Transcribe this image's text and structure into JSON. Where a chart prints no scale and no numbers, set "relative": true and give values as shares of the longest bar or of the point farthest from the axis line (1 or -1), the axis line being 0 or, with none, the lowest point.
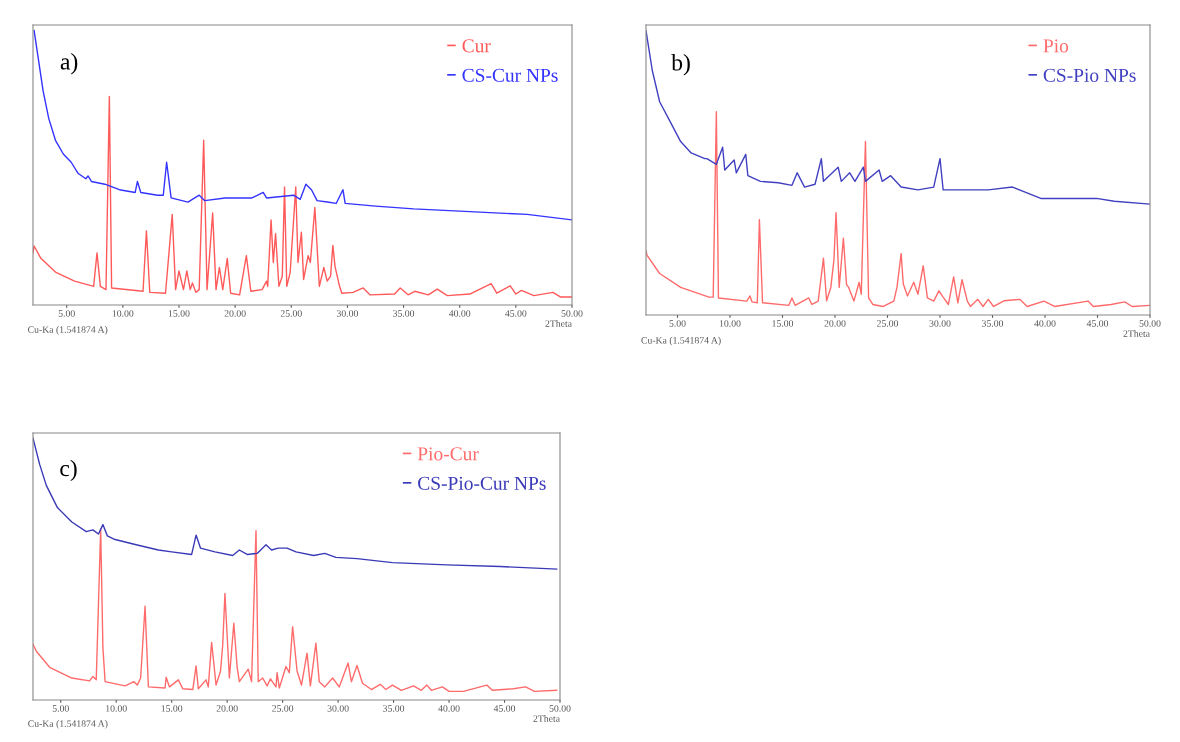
{
  "chart_data": [
    {
      "type": "line",
      "relative": true,
      "xlabel": "2Theta",
      "annotations": [
        "a)",
        "Cu-Ka (1.541874 A)"
      ],
      "legend": "top right",
      "grid": false,
      "xlim": [
        2,
        50
      ],
      "xticks": [
        {
          "value": 5,
          "label": "5.00"
        },
        {
          "value": 10,
          "label": "10.00"
        },
        {
          "value": 15,
          "label": "15.00"
        },
        {
          "value": 20,
          "label": "20.00"
        },
        {
          "value": 25,
          "label": "25.00"
        },
        {
          "value": 30,
          "label": "30.00"
        },
        {
          "value": 35,
          "label": "35.00"
        },
        {
          "value": 40,
          "label": "40.00"
        },
        {
          "value": 45,
          "label": "45.00"
        },
        {
          "value": 50,
          "label": "50.00"
        }
      ],
      "series": [
        {
          "name": "Cur",
          "color": "#ff5a5a",
          "x": [
            2.0,
            2.1,
            2.7,
            4.0,
            5.7,
            7.4,
            7.7,
            8.0,
            8.5,
            8.8,
            9.0,
            11.8,
            12.1,
            12.4,
            13.8,
            14.4,
            14.7,
            15.0,
            15.4,
            15.7,
            16.0,
            16.2,
            16.5,
            16.8,
            17.2,
            17.5,
            18.0,
            18.3,
            18.6,
            18.9,
            19.3,
            19.6,
            20.4,
            21.0,
            21.4,
            22.4,
            22.8,
            22.9,
            23.2,
            23.4,
            23.6,
            23.9,
            24.2,
            24.4,
            24.6,
            24.9,
            25.4,
            25.6,
            25.9,
            26.1,
            26.5,
            26.7,
            27.1,
            27.5,
            27.9,
            28.2,
            28.5,
            28.7,
            28.9,
            29.3,
            29.5,
            30.5,
            31.4,
            32.0,
            34.2,
            34.7,
            35.4,
            36.0,
            37.2,
            38.0,
            38.9,
            40.9,
            42.8,
            43.3,
            44.5,
            45.0,
            45.5,
            46.6,
            48.3,
            49.0,
            50.0
          ],
          "values": [
            0.19,
            0.215,
            0.17,
            0.12,
            0.087,
            0.068,
            0.19,
            0.068,
            0.056,
            0.76,
            0.062,
            0.05,
            0.27,
            0.046,
            0.043,
            0.33,
            0.056,
            0.124,
            0.056,
            0.124,
            0.056,
            0.08,
            0.046,
            0.056,
            0.6,
            0.056,
            0.335,
            0.056,
            0.137,
            0.056,
            0.17,
            0.043,
            0.037,
            0.18,
            0.05,
            0.056,
            0.087,
            0.068,
            0.31,
            0.155,
            0.26,
            0.068,
            0.105,
            0.43,
            0.068,
            0.118,
            0.43,
            0.155,
            0.265,
            0.093,
            0.18,
            0.155,
            0.355,
            0.068,
            0.137,
            0.087,
            0.105,
            0.217,
            0.14,
            0.068,
            0.043,
            0.046,
            0.062,
            0.037,
            0.04,
            0.062,
            0.037,
            0.05,
            0.037,
            0.058,
            0.034,
            0.04,
            0.078,
            0.043,
            0.07,
            0.04,
            0.053,
            0.034,
            0.046,
            0.029,
            0.029
          ]
        },
        {
          "name": "CS-Cur NPs",
          "color": "#3333ff",
          "x": [
            2.1,
            2.9,
            3.4,
            4.0,
            4.7,
            5.4,
            6.0,
            6.7,
            6.9,
            7.2,
            8.4,
            9.7,
            11.1,
            11.3,
            11.6,
            13.1,
            13.6,
            13.9,
            14.3,
            15.8,
            16.8,
            17.3,
            19.1,
            21.5,
            22.5,
            22.8,
            25.2,
            25.8,
            26.3,
            26.8,
            27.3,
            28.2,
            29.0,
            29.6,
            29.8,
            32.5,
            35.9,
            40.9,
            46.0,
            50.0
          ],
          "values": [
            1.0,
            0.78,
            0.68,
            0.6,
            0.55,
            0.52,
            0.48,
            0.46,
            0.47,
            0.45,
            0.44,
            0.42,
            0.41,
            0.45,
            0.41,
            0.4,
            0.4,
            0.52,
            0.39,
            0.375,
            0.4,
            0.38,
            0.39,
            0.39,
            0.41,
            0.39,
            0.4,
            0.385,
            0.44,
            0.42,
            0.38,
            0.375,
            0.37,
            0.42,
            0.37,
            0.36,
            0.35,
            0.34,
            0.33,
            0.31
          ]
        }
      ]
    },
    {
      "type": "line",
      "relative": true,
      "xlabel": "2Theta",
      "annotations": [
        "b)",
        "Cu-Ka (1.541874 A)"
      ],
      "legend": "top right",
      "grid": false,
      "xlim": [
        2,
        50
      ],
      "xticks": [
        {
          "value": 5,
          "label": "5.00"
        },
        {
          "value": 10,
          "label": "10.00"
        },
        {
          "value": 15,
          "label": "15.00"
        },
        {
          "value": 20,
          "label": "20.00"
        },
        {
          "value": 25,
          "label": "25.00"
        },
        {
          "value": 30,
          "label": "30.00"
        },
        {
          "value": 35,
          "label": "35.00"
        },
        {
          "value": 40,
          "label": "40.00"
        },
        {
          "value": 45,
          "label": "45.00"
        },
        {
          "value": 50,
          "label": "50.00"
        }
      ],
      "series": [
        {
          "name": "Pio",
          "color": "#ff6b6b",
          "x": [
            2.0,
            2.1,
            3.3,
            5.3,
            8.0,
            8.4,
            8.7,
            8.9,
            11.6,
            11.9,
            12.1,
            12.6,
            12.8,
            13.1,
            15.6,
            15.9,
            16.2,
            17.5,
            17.8,
            18.4,
            18.9,
            19.2,
            19.6,
            19.9,
            20.1,
            20.4,
            20.8,
            21.1,
            21.3,
            21.8,
            22.3,
            22.5,
            22.9,
            23.2,
            23.6,
            24.6,
            25.6,
            25.9,
            26.3,
            26.5,
            26.9,
            27.5,
            27.9,
            28.4,
            28.8,
            29.4,
            29.9,
            30.3,
            30.8,
            31.3,
            31.7,
            32.1,
            32.6,
            32.9,
            33.6,
            34.1,
            34.6,
            35.1,
            36.1,
            37.6,
            38.3,
            39.9,
            40.9,
            44.1,
            44.6,
            46.3,
            47.6,
            48.3,
            50.0
          ],
          "values": [
            0.225,
            0.21,
            0.146,
            0.097,
            0.063,
            0.063,
            0.715,
            0.06,
            0.049,
            0.067,
            0.046,
            0.043,
            0.335,
            0.043,
            0.034,
            0.06,
            0.034,
            0.06,
            0.037,
            0.049,
            0.2,
            0.05,
            0.097,
            0.195,
            0.36,
            0.097,
            0.27,
            0.107,
            0.097,
            0.049,
            0.115,
            0.073,
            0.61,
            0.06,
            0.037,
            0.03,
            0.049,
            0.097,
            0.216,
            0.11,
            0.067,
            0.115,
            0.073,
            0.173,
            0.06,
            0.049,
            0.085,
            0.063,
            0.037,
            0.134,
            0.043,
            0.124,
            0.049,
            0.03,
            0.055,
            0.03,
            0.055,
            0.03,
            0.05,
            0.055,
            0.03,
            0.049,
            0.03,
            0.049,
            0.03,
            0.037,
            0.046,
            0.03,
            0.034
          ]
        },
        {
          "name": "CS-Pio NPs",
          "color": "#4040c0",
          "x": [
            2.0,
            2.6,
            3.3,
            4.3,
            5.3,
            6.3,
            7.6,
            7.8,
            8.7,
            9.3,
            9.5,
            10.4,
            10.6,
            11.5,
            11.7,
            12.9,
            14.6,
            15.9,
            16.4,
            17.1,
            18.1,
            18.7,
            18.9,
            20.3,
            20.6,
            21.4,
            21.9,
            22.7,
            22.9,
            24.2,
            24.5,
            25.3,
            26.3,
            27.9,
            29.4,
            30.0,
            30.3,
            32.9,
            34.6,
            36.9,
            39.6,
            42.9,
            44.9,
            46.6,
            50.0
          ],
          "values": [
            1.0,
            0.86,
            0.75,
            0.68,
            0.61,
            0.57,
            0.55,
            0.55,
            0.53,
            0.59,
            0.51,
            0.545,
            0.5,
            0.565,
            0.49,
            0.47,
            0.465,
            0.456,
            0.5,
            0.45,
            0.46,
            0.55,
            0.47,
            0.52,
            0.47,
            0.5,
            0.47,
            0.52,
            0.47,
            0.51,
            0.47,
            0.49,
            0.45,
            0.44,
            0.45,
            0.55,
            0.44,
            0.44,
            0.44,
            0.45,
            0.41,
            0.41,
            0.41,
            0.4,
            0.39
          ]
        }
      ]
    },
    {
      "type": "line",
      "relative": true,
      "xlabel": "2Theta",
      "annotations": [
        "c)",
        "Cu-Ka (1.541874 A)"
      ],
      "legend": "top right",
      "grid": false,
      "xlim": [
        2.5,
        50
      ],
      "xticks": [
        {
          "value": 5,
          "label": "5.00"
        },
        {
          "value": 10,
          "label": "10.00"
        },
        {
          "value": 15,
          "label": "15.00"
        },
        {
          "value": 20,
          "label": "20.00"
        },
        {
          "value": 25,
          "label": "25.00"
        },
        {
          "value": 30,
          "label": "30.00"
        },
        {
          "value": 35,
          "label": "35.00"
        },
        {
          "value": 40,
          "label": "40.00"
        },
        {
          "value": 45,
          "label": "45.00"
        },
        {
          "value": 50,
          "label": "50.00"
        }
      ],
      "series": [
        {
          "name": "Pio-Cur",
          "color": "#ff6b6b",
          "x": [
            2.5,
            2.8,
            4.0,
            6.0,
            7.6,
            7.9,
            8.2,
            8.6,
            8.8,
            9.0,
            10.8,
            11.6,
            11.9,
            12.2,
            12.6,
            12.9,
            14.4,
            14.5,
            14.8,
            15.6,
            16.0,
            16.9,
            17.2,
            17.4,
            18.1,
            18.3,
            18.6,
            19.0,
            19.4,
            19.6,
            19.8,
            20.2,
            20.6,
            20.9,
            21.1,
            21.9,
            22.2,
            22.6,
            22.8,
            23.2,
            23.6,
            23.9,
            24.4,
            24.5,
            24.7,
            25.3,
            25.6,
            25.9,
            26.3,
            26.7,
            27.2,
            27.5,
            28.0,
            28.3,
            28.8,
            29.5,
            30.1,
            30.9,
            31.2,
            31.7,
            32.2,
            33.0,
            33.8,
            34.3,
            34.9,
            35.7,
            36.8,
            37.5,
            38.0,
            38.4,
            39.4,
            40.0,
            41.3,
            43.4,
            43.9,
            45.8,
            46.9,
            47.7,
            49.7
          ],
          "values": [
            0.213,
            0.186,
            0.125,
            0.084,
            0.073,
            0.09,
            0.077,
            0.654,
            0.2,
            0.07,
            0.054,
            0.07,
            0.057,
            0.084,
            0.358,
            0.05,
            0.046,
            0.087,
            0.05,
            0.077,
            0.043,
            0.04,
            0.13,
            0.043,
            0.077,
            0.05,
            0.22,
            0.057,
            0.11,
            0.21,
            0.407,
            0.084,
            0.293,
            0.125,
            0.07,
            0.118,
            0.07,
            0.647,
            0.07,
            0.084,
            0.054,
            0.081,
            0.05,
            0.104,
            0.046,
            0.128,
            0.104,
            0.28,
            0.111,
            0.057,
            0.179,
            0.054,
            0.217,
            0.07,
            0.05,
            0.084,
            0.05,
            0.141,
            0.07,
            0.132,
            0.064,
            0.04,
            0.06,
            0.04,
            0.057,
            0.037,
            0.054,
            0.037,
            0.057,
            0.037,
            0.05,
            0.033,
            0.033,
            0.057,
            0.037,
            0.043,
            0.05,
            0.033,
            0.037
          ]
        },
        {
          "name": "CS-Pio-Cur NPs",
          "color": "#3a3ab8",
          "x": [
            2.5,
            3.1,
            3.7,
            4.7,
            6.0,
            7.3,
            7.9,
            8.4,
            8.8,
            9.2,
            9.9,
            11.8,
            13.8,
            15.0,
            16.8,
            17.2,
            17.6,
            18.9,
            20.5,
            21.1,
            21.8,
            22.7,
            23.5,
            24.0,
            24.6,
            25.4,
            26.2,
            27.8,
            28.8,
            29.8,
            31.7,
            34.9,
            39.8,
            44.6,
            49.7
          ],
          "values": [
            1.0,
            0.9,
            0.82,
            0.735,
            0.68,
            0.643,
            0.65,
            0.634,
            0.67,
            0.627,
            0.613,
            0.593,
            0.573,
            0.566,
            0.556,
            0.63,
            0.58,
            0.566,
            0.552,
            0.573,
            0.556,
            0.56,
            0.593,
            0.573,
            0.58,
            0.58,
            0.566,
            0.552,
            0.56,
            0.545,
            0.54,
            0.525,
            0.516,
            0.51,
            0.5
          ]
        }
      ]
    }
  ]
}
